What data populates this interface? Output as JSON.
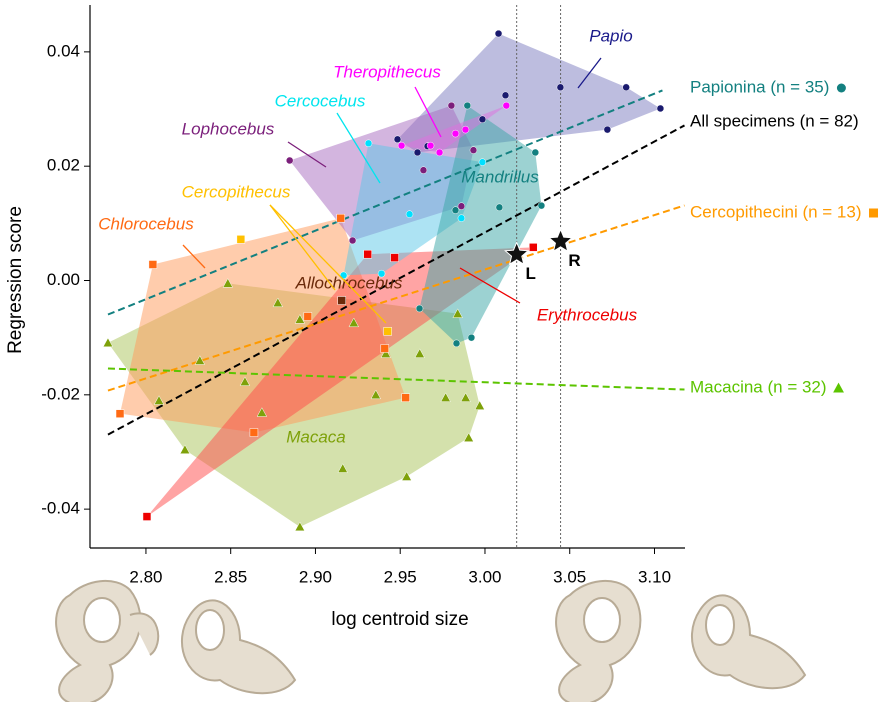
{
  "chart_data": {
    "type": "scatter",
    "xlabel": "log centroid size",
    "ylabel": "Regression score",
    "xlim": [
      2.767,
      3.118
    ],
    "ylim": [
      -0.0468,
      0.0482
    ],
    "xticks": [
      {
        "value": 2.8,
        "label": "2.80"
      },
      2.85,
      {
        "value": 2.9,
        "label": "2.90"
      },
      2.95,
      {
        "value": 3.0,
        "label": "3.00"
      },
      3.05,
      {
        "value": 3.1,
        "label": "3.10"
      }
    ],
    "yticks": [
      0.04,
      0.02,
      {
        "value": 0,
        "label": "0.00"
      },
      -0.02,
      -0.04
    ],
    "series": [
      {
        "name": "Macaca",
        "marker": "triangle",
        "color": "#7ea10a",
        "fill": "#a9c35a",
        "x": [
          2.7776,
          2.8908,
          2.9904,
          2.9969,
          2.8483,
          2.9839,
          2.8077,
          2.823,
          2.8584,
          2.8908,
          2.9226,
          2.9615,
          2.9768,
          2.9886,
          2.9356,
          2.9161,
          2.9538,
          2.8778,
          2.9415,
          2.8318,
          2.8684
        ],
        "values": [
          -0.0109,
          -0.0431,
          -0.0275,
          -0.0219,
          -0.0005,
          -0.0058,
          -0.021,
          -0.0296,
          -0.0177,
          -0.0068,
          -0.0074,
          -0.0128,
          -0.0205,
          -0.0205,
          -0.02,
          -0.0329,
          -0.0343,
          -0.0039,
          -0.0128,
          -0.014,
          -0.0231
        ]
      },
      {
        "name": "Chlorocebus",
        "marker": "square",
        "color": "#ff6a13",
        "fill": "#ff9a5a",
        "x": [
          2.9149,
          2.8041,
          2.7847,
          2.9532,
          2.8637,
          2.9409,
          2.8955
        ],
        "values": [
          0.0109,
          0.0028,
          -0.0233,
          -0.0205,
          -0.0266,
          -0.0119,
          -0.0063
        ]
      },
      {
        "name": "Erythrocebus",
        "marker": "square",
        "color": "#ee0000",
        "fill": "#ff4a4a",
        "x": [
          2.8006,
          2.9308,
          3.0285,
          2.9467
        ],
        "values": [
          -0.0413,
          0.0046,
          0.0058,
          0.004
        ]
      },
      {
        "name": "Papio",
        "marker": "circle",
        "color": "#1a1a6e",
        "fill": "#7b7bc0",
        "x": [
          3.008,
          3.0445,
          3.0833,
          3.1035,
          3.0722,
          3.0121,
          2.9985,
          2.9661,
          2.9484,
          2.9602
        ],
        "values": [
          0.0432,
          0.0338,
          0.0338,
          0.0301,
          0.0264,
          0.0324,
          0.0282,
          0.0235,
          0.0247,
          0.0224
        ]
      },
      {
        "name": "Lophocebus",
        "marker": "circle",
        "color": "#7b1f7b",
        "fill": "#a86cc0",
        "x": [
          2.8848,
          2.9802,
          2.9932,
          2.9219,
          2.9637,
          2.9861
        ],
        "values": [
          0.021,
          0.0306,
          0.0228,
          0.007,
          0.0193,
          0.013
        ]
      },
      {
        "name": "Cercocebus",
        "marker": "circle",
        "color": "#00e0ff",
        "fill": "#5cc8e8",
        "x": [
          2.9313,
          2.9555,
          2.9166,
          2.939,
          2.9985,
          2.9861
        ],
        "values": [
          0.024,
          0.0116,
          0.0009,
          0.0012,
          0.0207,
          0.0109
        ]
      },
      {
        "name": "Mandrillus",
        "marker": "circle",
        "color": "#138080",
        "fill": "#3aa6a6",
        "x": [
          2.9896,
          3.0297,
          3.0333,
          3.0085,
          2.992,
          2.9832,
          2.9614,
          2.9826
        ],
        "values": [
          0.0306,
          0.0224,
          0.0131,
          0.0128,
          -0.01,
          -0.011,
          -0.0049,
          0.0123
        ]
      },
      {
        "name": "Theropithecus",
        "marker": "circle",
        "color": "#ff00ff",
        "fill": "#e070e0",
        "x": [
          3.0126,
          2.9885,
          2.9679,
          2.9508,
          2.9732,
          2.9826
        ],
        "values": [
          0.0306,
          0.0264,
          0.0236,
          0.0236,
          0.0224,
          0.0257
        ]
      },
      {
        "name": "Allochrocebus",
        "marker": "square",
        "color": "#6b2a0a",
        "fill": "#6b2a0a",
        "x": [
          2.9155
        ],
        "values": [
          -0.0035
        ]
      },
      {
        "name": "Cercopithecus",
        "marker": "square",
        "color": "#ffc000",
        "fill": "#ffc000",
        "x": [
          2.856,
          2.9426
        ],
        "values": [
          0.0072,
          -0.0089
        ]
      }
    ],
    "lines": [
      {
        "name": "Papionina (n = 35)",
        "color": "#138080",
        "marker": "circle",
        "x": [
          2.7776,
          3.1047
        ],
        "values": [
          -0.00595,
          0.03326
        ]
      },
      {
        "name": "All specimens (n = 82)",
        "color": "#000000",
        "x": [
          2.7776,
          3.1177
        ],
        "values": [
          -0.02696,
          0.02713
        ]
      },
      {
        "name": "Cercopithecini (n = 13)",
        "color": "#ff9a00",
        "marker": "square",
        "x": [
          2.7776,
          3.1177
        ],
        "values": [
          -0.01926,
          0.01313
        ]
      },
      {
        "name": "Macacina (n = 32)",
        "color": "#5cc400",
        "marker": "triangle",
        "x": [
          2.7776,
          3.1177
        ],
        "values": [
          -0.0154,
          -0.01908
        ]
      }
    ],
    "reference_x": [
      3.0187,
      3.0446
    ],
    "specimens": {
      "labels": [
        "L",
        "R"
      ],
      "x": [
        3.0187,
        3.0446
      ],
      "values": [
        0.00455,
        0.00683
      ]
    }
  }
}
